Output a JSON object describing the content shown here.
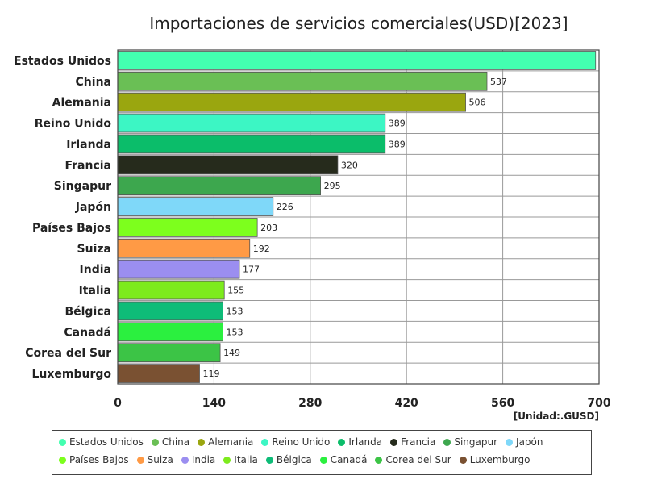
{
  "chart_data": {
    "type": "bar",
    "orientation": "horizontal",
    "title": "Importaciones de servicios comerciales(USD)[2023]",
    "unit_label": "[Unidad:.GUSD]",
    "xlim": [
      0,
      700
    ],
    "xticks": [
      0,
      140,
      280,
      420,
      560,
      700
    ],
    "grid": true,
    "legend_position": "bottom",
    "categories": [
      "Estados Unidos",
      "China",
      "Alemania",
      "Reino Unido",
      "Irlanda",
      "Francia",
      "Singapur",
      "Japón",
      "Países Bajos",
      "Suiza",
      "India",
      "Italia",
      "Bélgica",
      "Canadá",
      "Corea del Sur",
      "Luxemburgo"
    ],
    "values": [
      695,
      537,
      506,
      389,
      389,
      320,
      295,
      226,
      203,
      192,
      177,
      155,
      153,
      153,
      149,
      119
    ],
    "data_labels": [
      "",
      "537",
      "506",
      "389",
      "389",
      "320",
      "295",
      "226",
      "203",
      "192",
      "177",
      "155",
      "153",
      "153",
      "149",
      "119"
    ],
    "colors": [
      "#43ffb0",
      "#6abf55",
      "#9aa60f",
      "#3cf6c4",
      "#0bbd6a",
      "#262b1c",
      "#3da74e",
      "#7fd8f9",
      "#7dff1d",
      "#ff9a45",
      "#9b8ef0",
      "#7deb1d",
      "#0ebc78",
      "#2bf03f",
      "#3cc446",
      "#7a5132"
    ]
  }
}
